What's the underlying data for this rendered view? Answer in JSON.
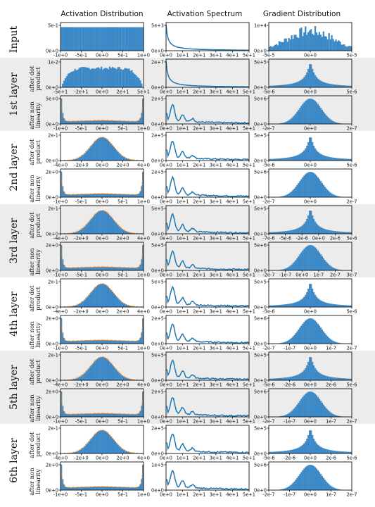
{
  "columns": [
    "Activation Distribution",
    "Activation Spectrum",
    "Gradient Distribution"
  ],
  "rows": [
    {
      "label": "Input",
      "sub": []
    },
    {
      "label": "1st layer",
      "sub": [
        "after dot product",
        "after non linearity"
      ]
    },
    {
      "label": "2nd layer",
      "sub": [
        "after dot product",
        "after non linearity"
      ]
    },
    {
      "label": "3rd layer",
      "sub": [
        "after dot product",
        "after non linearity"
      ]
    },
    {
      "label": "4th layer",
      "sub": [
        "after dot product",
        "after non linearity"
      ]
    },
    {
      "label": "5th layer",
      "sub": [
        "after dot product",
        "after non linearity"
      ]
    },
    {
      "label": "6th layer",
      "sub": [
        "after dot product",
        "after non linearity"
      ]
    }
  ],
  "colors": {
    "bar": "#1f6fb4",
    "bar_light": "#5ba3d9",
    "curve": "#1f77b4",
    "fit": "#ff7f0e",
    "band": "#ececec"
  },
  "chart_data": [
    {
      "panel": "input-activation",
      "type": "bar",
      "shape": "uniform",
      "xticks": [
        "-1e+0",
        "-5e-1",
        "0e+0",
        "5e-1",
        "1e+0"
      ],
      "yticks": [
        "0e+0",
        "5e-1"
      ]
    },
    {
      "panel": "input-spectrum",
      "type": "line",
      "shape": "decay",
      "xticks": [
        "0e+0",
        "1e+1",
        "2e+1",
        "3e+1",
        "4e+1",
        "5e+1"
      ],
      "yticks": [
        "0e+0",
        "5e+3"
      ]
    },
    {
      "panel": "input-gradient",
      "type": "bar",
      "shape": "noisy",
      "xticks": [
        "-5e-5",
        "0e+0",
        "5e-5"
      ],
      "yticks": [
        "0e+0",
        "1e+4"
      ]
    },
    {
      "panel": "l1-dot-activation",
      "type": "bar",
      "shape": "wide",
      "xticks": [
        "-5e+1",
        "-2e+1",
        "0e+0",
        "2e+1",
        "5e+1"
      ],
      "yticks": [
        "0e+0",
        "1e-2"
      ]
    },
    {
      "panel": "l1-dot-spectrum",
      "type": "line",
      "shape": "decay",
      "xticks": [
        "0e+0",
        "1e+1",
        "2e+1",
        "3e+1",
        "4e+1",
        "5e+1"
      ],
      "yticks": [
        "0e+0",
        "2e+7"
      ]
    },
    {
      "panel": "l1-dot-gradient",
      "type": "bar",
      "shape": "spike",
      "xticks": [
        "-5e-6",
        "0e+0",
        "5e-6"
      ],
      "yticks": [
        "0e+0",
        "5e+5"
      ]
    },
    {
      "panel": "l1-nl-activation",
      "type": "bar",
      "shape": "ushape",
      "xticks": [
        "-1e+0",
        "-5e-1",
        "0e+0",
        "5e-1",
        "1e+0"
      ],
      "yticks": [
        "0e+0",
        "5e+0"
      ]
    },
    {
      "panel": "l1-nl-spectrum",
      "type": "line",
      "shape": "bumps",
      "xticks": [
        "0e+0",
        "1e+1",
        "2e+1",
        "3e+1",
        "4e+1",
        "5e+1"
      ],
      "yticks": [
        "0e+0",
        "2e+5"
      ]
    },
    {
      "panel": "l1-nl-gradient",
      "type": "bar",
      "shape": "gauss",
      "xticks": [
        "-2e-7",
        "0e+0",
        "2e-7"
      ],
      "yticks": [
        "0e+0",
        "5e+6"
      ]
    },
    {
      "panel": "l2-dot-activation",
      "type": "bar",
      "shape": "gauss_fit",
      "xticks": [
        "-4e+0",
        "-2e+0",
        "0e+0",
        "2e+0",
        "4e+0"
      ],
      "yticks": [
        "0e+0",
        "2e-1"
      ]
    },
    {
      "panel": "l2-dot-spectrum",
      "type": "line",
      "shape": "bumps",
      "xticks": [
        "0e+0",
        "1e+1",
        "2e+1",
        "3e+1",
        "4e+1",
        "5e+1"
      ],
      "yticks": [
        "0e+0",
        "2e+5"
      ]
    },
    {
      "panel": "l2-dot-gradient",
      "type": "bar",
      "shape": "spike",
      "xticks": [
        "-5e-6",
        "0e+0",
        "5e-6"
      ],
      "yticks": [
        "0e+0",
        "5e+5"
      ]
    },
    {
      "panel": "l2-nl-activation",
      "type": "bar",
      "shape": "ushape",
      "xticks": [
        "-1e+0",
        "-5e-1",
        "0e+0",
        "5e-1",
        "1e+0"
      ],
      "yticks": [
        "0e+0",
        "2e+0"
      ]
    },
    {
      "panel": "l2-nl-spectrum",
      "type": "line",
      "shape": "bumps",
      "xticks": [
        "0e+0",
        "1e+1",
        "2e+1",
        "3e+1",
        "4e+1",
        "5e+1"
      ],
      "yticks": [
        "0e+0",
        "2e+5"
      ]
    },
    {
      "panel": "l2-nl-gradient",
      "type": "bar",
      "shape": "gauss",
      "xticks": [
        "-2e-7",
        "0e+0",
        "2e-7"
      ],
      "yticks": [
        "0e+0",
        "5e+6"
      ]
    },
    {
      "panel": "l3-dot-activation",
      "type": "bar",
      "shape": "gauss_fit",
      "xticks": [
        "-4e+0",
        "-2e+0",
        "0e+0",
        "2e+0",
        "4e+0"
      ],
      "yticks": [
        "0e+0",
        "2e-1"
      ]
    },
    {
      "panel": "l3-dot-spectrum",
      "type": "line",
      "shape": "bumps",
      "xticks": [
        "0e+0",
        "1e+1",
        "2e+1",
        "3e+1",
        "4e+1",
        "5e+1"
      ],
      "yticks": [
        "0e+0",
        "5e+5"
      ]
    },
    {
      "panel": "l3-dot-gradient",
      "type": "bar",
      "shape": "spike",
      "xticks": [
        "-7e-6",
        "-5e-6",
        "-2e-6",
        "0e+0",
        "2e-6",
        "5e-6"
      ],
      "yticks": [
        "0e+0",
        "5e+5"
      ]
    },
    {
      "panel": "l3-nl-activation",
      "type": "bar",
      "shape": "ushape",
      "xticks": [
        "-1e+0",
        "-5e-1",
        "0e+0",
        "5e-1",
        "1e+0"
      ],
      "yticks": [
        "0e+0",
        "2e+0"
      ]
    },
    {
      "panel": "l3-nl-spectrum",
      "type": "line",
      "shape": "bumps",
      "xticks": [
        "0e+0",
        "1e+1",
        "2e+1",
        "3e+1",
        "4e+1",
        "5e+1"
      ],
      "yticks": [
        "0e+0",
        "5e+5"
      ]
    },
    {
      "panel": "l3-nl-gradient",
      "type": "bar",
      "shape": "gauss",
      "xticks": [
        "-2e-7",
        "-1e-7",
        "0e+0",
        "1e-7",
        "2e-7",
        "3e-7"
      ],
      "yticks": [
        "0e+0",
        "5e+6"
      ]
    },
    {
      "panel": "l4-dot-activation",
      "type": "bar",
      "shape": "gauss_fit",
      "xticks": [
        "-4e+0",
        "-2e+0",
        "0e+0",
        "2e+0",
        "4e+0"
      ],
      "yticks": [
        "0e+0",
        "2e-1"
      ]
    },
    {
      "panel": "l4-dot-spectrum",
      "type": "line",
      "shape": "bumps",
      "xticks": [
        "0e+0",
        "1e+1",
        "2e+1",
        "3e+1",
        "4e+1",
        "5e+1"
      ],
      "yticks": [
        "0e+0",
        "5e+5"
      ]
    },
    {
      "panel": "l4-dot-gradient",
      "type": "bar",
      "shape": "spike",
      "xticks": [
        "-5e-6",
        "0e+0",
        "5e-6"
      ],
      "yticks": [
        "0e+0",
        "5e+5"
      ]
    },
    {
      "panel": "l4-nl-activation",
      "type": "bar",
      "shape": "ushape",
      "xticks": [
        "-1e+0",
        "-5e-1",
        "0e+0",
        "5e-1",
        "1e+0"
      ],
      "yticks": [
        "0e+0",
        "2e+0"
      ]
    },
    {
      "panel": "l4-nl-spectrum",
      "type": "line",
      "shape": "bumps",
      "xticks": [
        "0e+0",
        "1e+1",
        "2e+1",
        "3e+1",
        "4e+1",
        "5e+1"
      ],
      "yticks": [
        "0e+0",
        "2e+5"
      ]
    },
    {
      "panel": "l4-nl-gradient",
      "type": "bar",
      "shape": "gauss",
      "xticks": [
        "-2e-7",
        "-1e-7",
        "0e+0",
        "1e-7",
        "2e-7"
      ],
      "yticks": [
        "0e+0",
        "5e+6"
      ]
    },
    {
      "panel": "l5-dot-activation",
      "type": "bar",
      "shape": "gauss_fit",
      "xticks": [
        "-4e+0",
        "-2e+0",
        "0e+0",
        "2e+0",
        "4e+0"
      ],
      "yticks": [
        "0e+0",
        "2e-1"
      ]
    },
    {
      "panel": "l5-dot-spectrum",
      "type": "line",
      "shape": "bumps",
      "xticks": [
        "0e+0",
        "1e+1",
        "2e+1",
        "3e+1",
        "4e+1",
        "5e+1"
      ],
      "yticks": [
        "0e+0",
        "5e+5"
      ]
    },
    {
      "panel": "l5-dot-gradient",
      "type": "bar",
      "shape": "spike",
      "xticks": [
        "-5e-6",
        "-2e-6",
        "0e+0",
        "2e-6",
        "5e-6"
      ],
      "yticks": [
        "0e+0",
        "5e+5"
      ]
    },
    {
      "panel": "l5-nl-activation",
      "type": "bar",
      "shape": "ushape",
      "xticks": [
        "-1e+0",
        "-5e-1",
        "0e+0",
        "5e-1",
        "1e+0"
      ],
      "yticks": [
        "0e+0",
        "2e+0"
      ]
    },
    {
      "panel": "l5-nl-spectrum",
      "type": "line",
      "shape": "bumps",
      "xticks": [
        "0e+0",
        "1e+1",
        "2e+1",
        "3e+1",
        "4e+1",
        "5e+1"
      ],
      "yticks": [
        "0e+0",
        "2e+5"
      ]
    },
    {
      "panel": "l5-nl-gradient",
      "type": "bar",
      "shape": "gauss",
      "xticks": [
        "-2e-7",
        "-1e-7",
        "0e+0",
        "1e-7",
        "2e-7"
      ],
      "yticks": [
        "0e+0",
        "5e+6"
      ]
    },
    {
      "panel": "l6-dot-activation",
      "type": "bar",
      "shape": "gauss_fit",
      "xticks": [
        "-4e+0",
        "-2e+0",
        "0e+0",
        "2e+0",
        "4e+0"
      ],
      "yticks": [
        "0e+0",
        "2e-1"
      ]
    },
    {
      "panel": "l6-dot-spectrum",
      "type": "line",
      "shape": "bumps",
      "xticks": [
        "0e+0",
        "1e+1",
        "2e+1",
        "3e+1",
        "4e+1",
        "5e+1"
      ],
      "yticks": [
        "0e+0",
        "2e+5"
      ]
    },
    {
      "panel": "l6-dot-gradient",
      "type": "bar",
      "shape": "spike",
      "xticks": [
        "-5e-6",
        "-2e-6",
        "0e+0",
        "2e-6",
        "5e-6"
      ],
      "yticks": [
        "0e+0",
        "5e+5"
      ]
    },
    {
      "panel": "l6-nl-activation",
      "type": "bar",
      "shape": "ushape",
      "xticks": [
        "-1e+0",
        "-5e-1",
        "0e+0",
        "5e-1",
        "1e+0"
      ],
      "yticks": [
        "0e+0",
        "2e+0"
      ]
    },
    {
      "panel": "l6-nl-spectrum",
      "type": "line",
      "shape": "bumps",
      "xticks": [
        "0e+0",
        "1e+1",
        "2e+1",
        "3e+1",
        "4e+1",
        "5e+1"
      ],
      "yticks": [
        "0e+0",
        "1e+5"
      ]
    },
    {
      "panel": "l6-nl-gradient",
      "type": "bar",
      "shape": "gauss",
      "xticks": [
        "-2e-7",
        "-1e-7",
        "0e+0",
        "1e-7",
        "2e-7"
      ],
      "yticks": [
        "0e+0",
        "5e+6"
      ]
    }
  ]
}
